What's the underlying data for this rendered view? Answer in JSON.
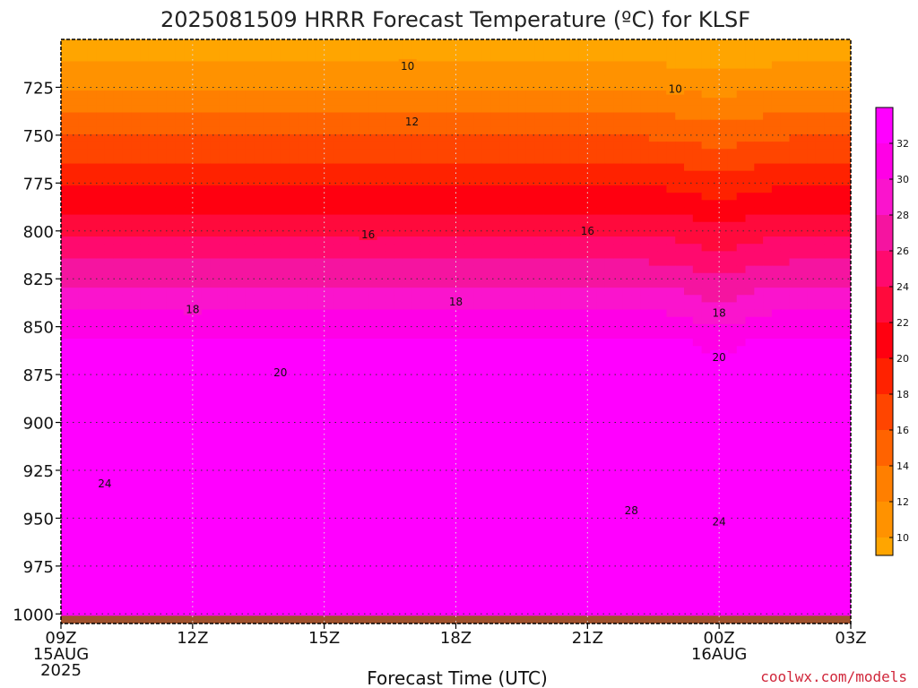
{
  "chart_data": {
    "type": "heatmap",
    "title": "2025081509 HRRR Forecast Temperature (ºC) for KLSF",
    "xlabel": "Forecast Time (UTC)",
    "ylabel": "",
    "x_ticks": [
      {
        "label": "09Z",
        "sub1": "15AUG",
        "sub2": "2025",
        "hour": 0
      },
      {
        "label": "12Z",
        "sub1": "",
        "sub2": "",
        "hour": 3
      },
      {
        "label": "15Z",
        "sub1": "",
        "sub2": "",
        "hour": 6
      },
      {
        "label": "18Z",
        "sub1": "",
        "sub2": "",
        "hour": 9
      },
      {
        "label": "21Z",
        "sub1": "",
        "sub2": "",
        "hour": 12
      },
      {
        "label": "00Z",
        "sub1": "16AUG",
        "sub2": "",
        "hour": 15
      },
      {
        "label": "03Z",
        "sub1": "",
        "sub2": "",
        "hour": 18
      }
    ],
    "xlim": [
      0,
      18
    ],
    "y_ticks": [
      725,
      750,
      775,
      800,
      825,
      850,
      875,
      900,
      925,
      950,
      975,
      1000
    ],
    "ylim": [
      1005,
      700
    ],
    "y_axis": "pressure (hPa), inverted",
    "grid": true,
    "contour_levels": [
      10,
      12,
      14,
      16,
      18,
      20,
      22,
      24,
      26,
      28,
      30,
      32
    ],
    "contour_labels": [
      {
        "text": "10",
        "hour": 7.9,
        "p": 714
      },
      {
        "text": "10",
        "hour": 14.0,
        "p": 726
      },
      {
        "text": "12",
        "hour": 8.0,
        "p": 743
      },
      {
        "text": "16",
        "hour": 7.0,
        "p": 802
      },
      {
        "text": "16",
        "hour": 12.0,
        "p": 800
      },
      {
        "text": "18",
        "hour": 3.0,
        "p": 841
      },
      {
        "text": "18",
        "hour": 9.0,
        "p": 837
      },
      {
        "text": "18",
        "hour": 15.0,
        "p": 843
      },
      {
        "text": "20",
        "hour": 5.0,
        "p": 874
      },
      {
        "text": "20",
        "hour": 15.0,
        "p": 866
      },
      {
        "text": "24",
        "hour": 1.0,
        "p": 932
      },
      {
        "text": "28",
        "hour": 13.0,
        "p": 946
      },
      {
        "text": "24",
        "hour": 15.0,
        "p": 952
      }
    ],
    "colorbar": {
      "ticks": [
        10,
        12,
        14,
        16,
        18,
        20,
        22,
        24,
        26,
        28,
        30,
        32
      ],
      "colors": [
        "#ffa500",
        "#ff9200",
        "#ff7f00",
        "#ff6300",
        "#ff4500",
        "#ff2200",
        "#ff0010",
        "#ff0a3c",
        "#ff0a6e",
        "#f514a0",
        "#fa14cd",
        "#ff00e6",
        "#ff00ff"
      ],
      "range": [
        9,
        34
      ]
    },
    "surface_color": "#a0522d",
    "surface_pressure": 1000
  },
  "credit": "coolwx.com/models"
}
